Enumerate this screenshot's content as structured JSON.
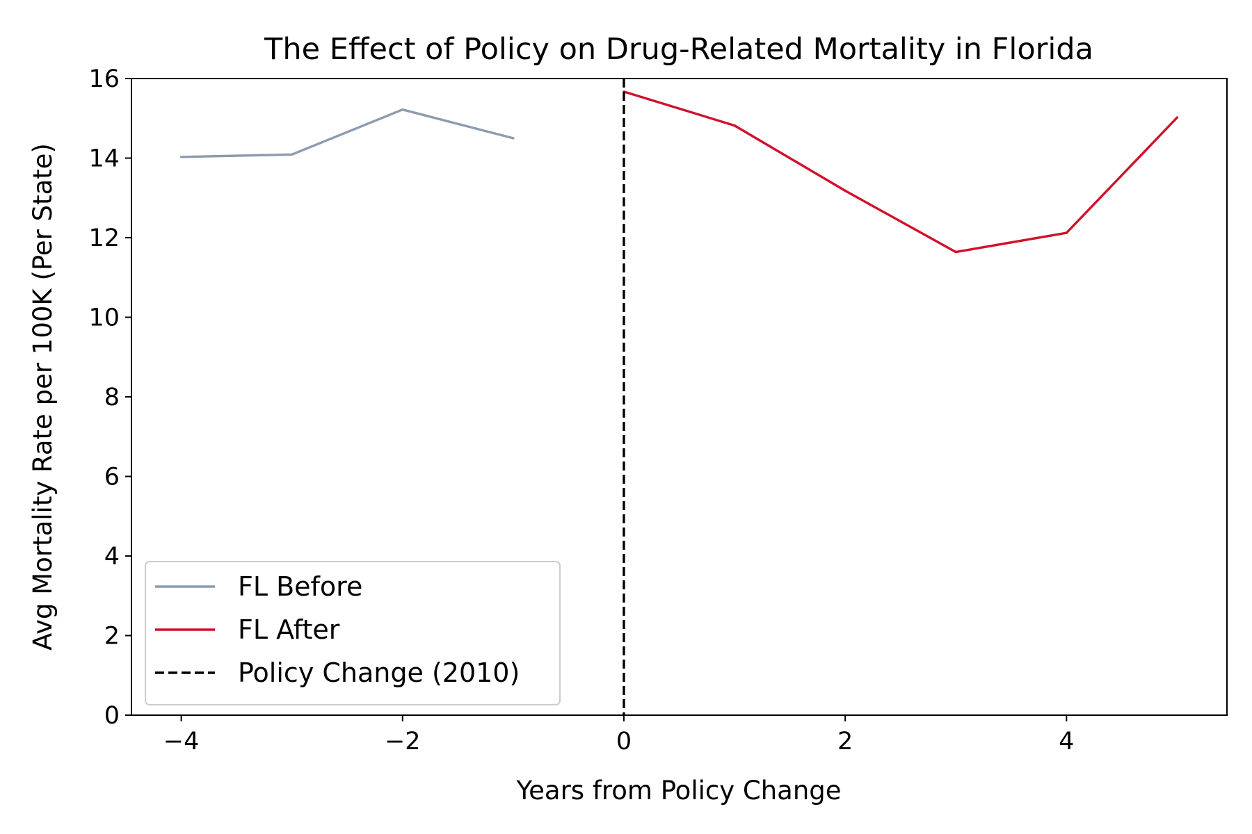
{
  "chart_data": {
    "type": "line",
    "title": "The Effect of Policy on Drug-Related Mortality in Florida",
    "xlabel": "Years from Policy Change",
    "ylabel": "Avg Mortality Rate per 100K (Per State)",
    "xlim": [
      -4.45,
      5.45
    ],
    "ylim": [
      0,
      16
    ],
    "xticks": [
      -4,
      -2,
      0,
      2,
      4
    ],
    "xtick_labels": [
      "−4",
      "−2",
      "0",
      "2",
      "4"
    ],
    "yticks": [
      0,
      2,
      4,
      6,
      8,
      10,
      12,
      14,
      16
    ],
    "ytick_labels": [
      "0",
      "2",
      "4",
      "6",
      "8",
      "10",
      "12",
      "14",
      "16"
    ],
    "grid": false,
    "legend_position": "lower-left",
    "series": [
      {
        "name": "FL Before",
        "color": "#8c9bb0",
        "style": "solid",
        "x": [
          -4,
          -3,
          -2,
          -1
        ],
        "y": [
          14.03,
          14.09,
          15.22,
          14.5
        ]
      },
      {
        "name": "FL After",
        "color": "#d0112b",
        "style": "solid",
        "x": [
          0,
          1,
          2,
          3,
          4,
          5
        ],
        "y": [
          15.67,
          14.82,
          13.18,
          11.64,
          12.12,
          15.02
        ]
      }
    ],
    "reference_lines": [
      {
        "name": "Policy Change (2010)",
        "orientation": "vertical",
        "x": 0,
        "color": "#000000",
        "style": "dashed"
      }
    ]
  }
}
